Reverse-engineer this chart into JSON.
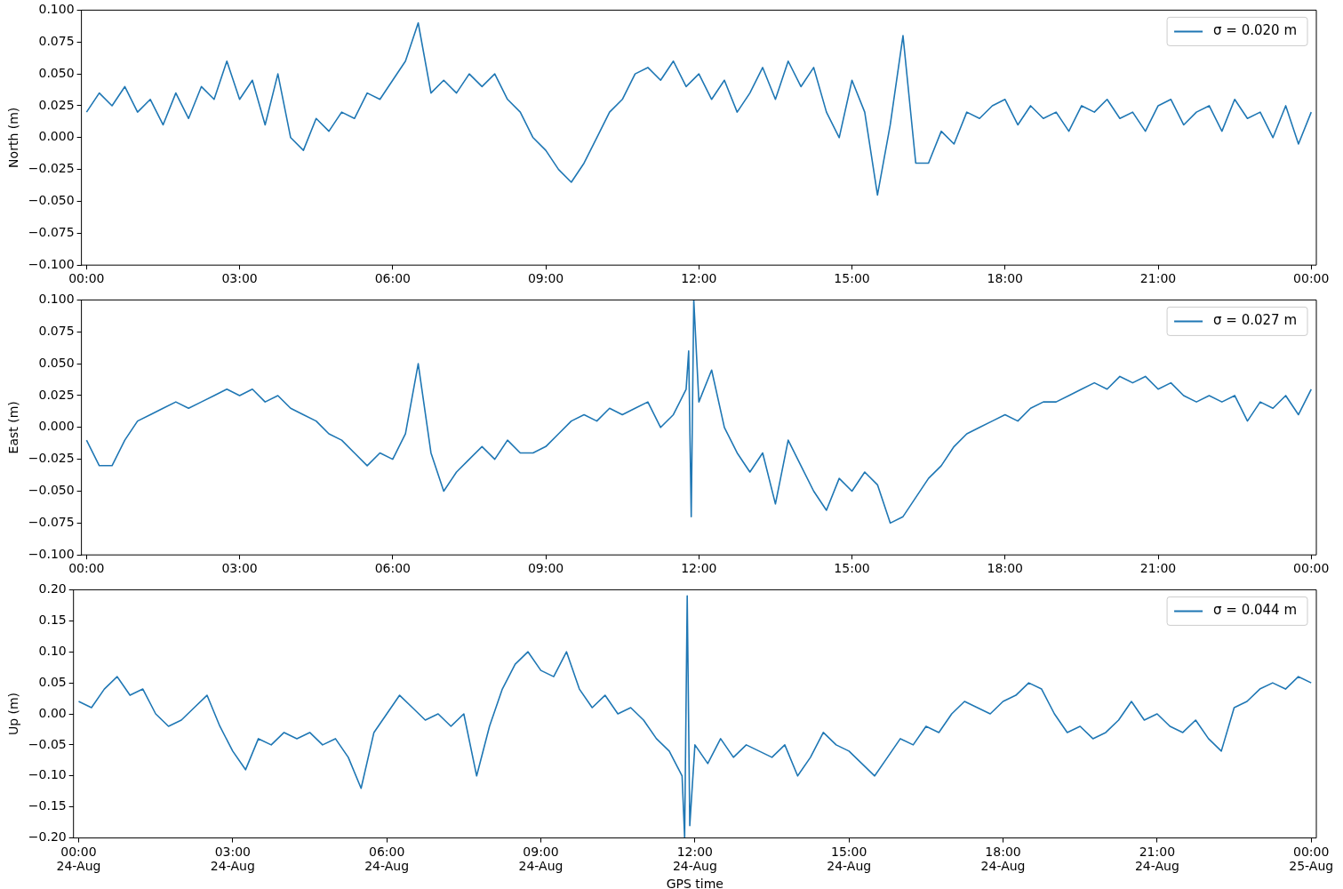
{
  "chart_data": [
    {
      "type": "line",
      "ylabel": "North (m)",
      "legend": "top right",
      "marker": "none",
      "line_style": "solid",
      "grid": false,
      "xlim": [
        -0.1,
        24.1
      ],
      "xticks": [
        {
          "value": 0,
          "label": "00:00"
        },
        {
          "value": 3,
          "label": "03:00"
        },
        {
          "value": 6,
          "label": "06:00"
        },
        {
          "value": 9,
          "label": "09:00"
        },
        {
          "value": 12,
          "label": "12:00"
        },
        {
          "value": 15,
          "label": "15:00"
        },
        {
          "value": 18,
          "label": "18:00"
        },
        {
          "value": 21,
          "label": "21:00"
        },
        {
          "value": 24,
          "label": "00:00"
        }
      ],
      "ylim": [
        -0.1,
        0.1
      ],
      "yticks": [
        {
          "value": -0.1,
          "label": "−0.100"
        },
        {
          "value": -0.075,
          "label": "−0.075"
        },
        {
          "value": -0.05,
          "label": "−0.050"
        },
        {
          "value": -0.025,
          "label": "−0.025"
        },
        {
          "value": 0,
          "label": "0.000"
        },
        {
          "value": 0.025,
          "label": "0.025"
        },
        {
          "value": 0.05,
          "label": "0.050"
        },
        {
          "value": 0.075,
          "label": "0.075"
        },
        {
          "value": 0.1,
          "label": "0.100"
        }
      ],
      "series": [
        {
          "name": "σ = 0.020 m",
          "color": "#1f77b4",
          "x": [
            0,
            0.25,
            0.5,
            0.75,
            1,
            1.25,
            1.5,
            1.75,
            2,
            2.25,
            2.5,
            2.75,
            3,
            3.25,
            3.5,
            3.75,
            4,
            4.25,
            4.5,
            4.75,
            5,
            5.25,
            5.5,
            5.75,
            6,
            6.25,
            6.5,
            6.75,
            7,
            7.25,
            7.5,
            7.75,
            8,
            8.25,
            8.5,
            8.75,
            9,
            9.25,
            9.5,
            9.75,
            10,
            10.25,
            10.5,
            10.75,
            11,
            11.25,
            11.5,
            11.75,
            12,
            12.25,
            12.5,
            12.75,
            13,
            13.25,
            13.5,
            13.75,
            14,
            14.25,
            14.5,
            14.75,
            15,
            15.25,
            15.5,
            15.75,
            16,
            16.25,
            16.5,
            16.75,
            17,
            17.25,
            17.5,
            17.75,
            18,
            18.25,
            18.5,
            18.75,
            19,
            19.25,
            19.5,
            19.75,
            20,
            20.25,
            20.5,
            20.75,
            21,
            21.25,
            21.5,
            21.75,
            22,
            22.25,
            22.5,
            22.75,
            23,
            23.25,
            23.5,
            23.75,
            24
          ],
          "values": [
            0.02,
            0.035,
            0.025,
            0.04,
            0.02,
            0.03,
            0.01,
            0.035,
            0.015,
            0.04,
            0.03,
            0.06,
            0.03,
            0.045,
            0.01,
            0.05,
            0.0,
            -0.01,
            0.015,
            0.005,
            0.02,
            0.015,
            0.035,
            0.03,
            0.045,
            0.06,
            0.09,
            0.035,
            0.045,
            0.035,
            0.05,
            0.04,
            0.05,
            0.03,
            0.02,
            0.0,
            -0.01,
            -0.025,
            -0.035,
            -0.02,
            0.0,
            0.02,
            0.03,
            0.05,
            0.055,
            0.045,
            0.06,
            0.04,
            0.05,
            0.03,
            0.045,
            0.02,
            0.035,
            0.055,
            0.03,
            0.06,
            0.04,
            0.055,
            0.02,
            0.0,
            0.045,
            0.02,
            -0.045,
            0.01,
            0.08,
            -0.02,
            -0.02,
            0.005,
            -0.005,
            0.02,
            0.015,
            0.025,
            0.03,
            0.01,
            0.025,
            0.015,
            0.02,
            0.005,
            0.025,
            0.02,
            0.03,
            0.015,
            0.02,
            0.005,
            0.025,
            0.03,
            0.01,
            0.02,
            0.025,
            0.005,
            0.03,
            0.015,
            0.02,
            0.0,
            0.025,
            -0.005,
            0.02
          ]
        }
      ]
    },
    {
      "type": "line",
      "ylabel": "East (m)",
      "legend": "top right",
      "marker": "none",
      "line_style": "solid",
      "grid": false,
      "xlim": [
        -0.1,
        24.1
      ],
      "xticks": [
        {
          "value": 0,
          "label": "00:00"
        },
        {
          "value": 3,
          "label": "03:00"
        },
        {
          "value": 6,
          "label": "06:00"
        },
        {
          "value": 9,
          "label": "09:00"
        },
        {
          "value": 12,
          "label": "12:00"
        },
        {
          "value": 15,
          "label": "15:00"
        },
        {
          "value": 18,
          "label": "18:00"
        },
        {
          "value": 21,
          "label": "21:00"
        },
        {
          "value": 24,
          "label": "00:00"
        }
      ],
      "ylim": [
        -0.1,
        0.1
      ],
      "yticks": [
        {
          "value": -0.1,
          "label": "−0.100"
        },
        {
          "value": -0.075,
          "label": "−0.075"
        },
        {
          "value": -0.05,
          "label": "−0.050"
        },
        {
          "value": -0.025,
          "label": "−0.025"
        },
        {
          "value": 0,
          "label": "0.000"
        },
        {
          "value": 0.025,
          "label": "0.025"
        },
        {
          "value": 0.05,
          "label": "0.050"
        },
        {
          "value": 0.075,
          "label": "0.075"
        },
        {
          "value": 0.1,
          "label": "0.100"
        }
      ],
      "series": [
        {
          "name": "σ = 0.027 m",
          "color": "#1f77b4",
          "x": [
            0,
            0.25,
            0.5,
            0.75,
            1,
            1.25,
            1.5,
            1.75,
            2,
            2.25,
            2.5,
            2.75,
            3,
            3.25,
            3.5,
            3.75,
            4,
            4.25,
            4.5,
            4.75,
            5,
            5.25,
            5.5,
            5.75,
            6,
            6.25,
            6.5,
            6.75,
            7,
            7.25,
            7.5,
            7.75,
            8,
            8.25,
            8.5,
            8.75,
            9,
            9.25,
            9.5,
            9.75,
            10,
            10.25,
            10.5,
            10.75,
            11,
            11.25,
            11.5,
            11.75,
            11.8,
            11.85,
            11.9,
            12,
            12.25,
            12.5,
            12.75,
            13,
            13.25,
            13.5,
            13.75,
            14,
            14.25,
            14.5,
            14.75,
            15,
            15.25,
            15.5,
            15.75,
            16,
            16.25,
            16.5,
            16.75,
            17,
            17.25,
            17.5,
            17.75,
            18,
            18.25,
            18.5,
            18.75,
            19,
            19.25,
            19.5,
            19.75,
            20,
            20.25,
            20.5,
            20.75,
            21,
            21.25,
            21.5,
            21.75,
            22,
            22.25,
            22.5,
            22.75,
            23,
            23.25,
            23.5,
            23.75,
            24
          ],
          "values": [
            -0.01,
            -0.03,
            -0.03,
            -0.01,
            0.005,
            0.01,
            0.015,
            0.02,
            0.015,
            0.02,
            0.025,
            0.03,
            0.025,
            0.03,
            0.02,
            0.025,
            0.015,
            0.01,
            0.005,
            -0.005,
            -0.01,
            -0.02,
            -0.03,
            -0.02,
            -0.025,
            -0.005,
            0.05,
            -0.02,
            -0.05,
            -0.035,
            -0.025,
            -0.015,
            -0.025,
            -0.01,
            -0.02,
            -0.02,
            -0.015,
            -0.005,
            0.005,
            0.01,
            0.005,
            0.015,
            0.01,
            0.015,
            0.02,
            0.0,
            0.01,
            0.03,
            0.06,
            -0.07,
            0.1,
            0.02,
            0.045,
            0.0,
            -0.02,
            -0.035,
            -0.02,
            -0.06,
            -0.01,
            -0.03,
            -0.05,
            -0.065,
            -0.04,
            -0.05,
            -0.035,
            -0.045,
            -0.075,
            -0.07,
            -0.055,
            -0.04,
            -0.03,
            -0.015,
            -0.005,
            0.0,
            0.005,
            0.01,
            0.005,
            0.015,
            0.02,
            0.02,
            0.025,
            0.03,
            0.035,
            0.03,
            0.04,
            0.035,
            0.04,
            0.03,
            0.035,
            0.025,
            0.02,
            0.025,
            0.02,
            0.025,
            0.005,
            0.02,
            0.015,
            0.025,
            0.01,
            0.03
          ]
        }
      ]
    },
    {
      "type": "line",
      "ylabel": "Up (m)",
      "xlabel": "GPS time",
      "legend": "top right",
      "marker": "none",
      "line_style": "solid",
      "grid": false,
      "xlim": [
        "--08-23T23:54",
        "--08-25T00:06"
      ],
      "xticks": [
        {
          "value": "--08-24T00:00",
          "label": "00:00\n24-Aug"
        },
        {
          "value": "--08-24T03:00",
          "label": "03:00\n24-Aug"
        },
        {
          "value": "--08-24T06:00",
          "label": "06:00\n24-Aug"
        },
        {
          "value": "--08-24T09:00",
          "label": "09:00\n24-Aug"
        },
        {
          "value": "--08-24T12:00",
          "label": "12:00\n24-Aug"
        },
        {
          "value": "--08-24T15:00",
          "label": "15:00\n24-Aug"
        },
        {
          "value": "--08-24T18:00",
          "label": "18:00\n24-Aug"
        },
        {
          "value": "--08-24T21:00",
          "label": "21:00\n24-Aug"
        },
        {
          "value": "--08-25T00:00",
          "label": "00:00\n25-Aug"
        }
      ],
      "ylim": [
        -0.2,
        0.2
      ],
      "yticks": [
        {
          "value": -0.2,
          "label": "−0.20"
        },
        {
          "value": -0.15,
          "label": "−0.15"
        },
        {
          "value": -0.1,
          "label": "−0.10"
        },
        {
          "value": -0.05,
          "label": "−0.05"
        },
        {
          "value": 0,
          "label": "0.00"
        },
        {
          "value": 0.05,
          "label": "0.05"
        },
        {
          "value": 0.1,
          "label": "0.10"
        },
        {
          "value": 0.15,
          "label": "0.15"
        },
        {
          "value": 0.2,
          "label": "0.20"
        }
      ],
      "series": [
        {
          "name": "σ = 0.044 m",
          "color": "#1f77b4",
          "x": [
            "--08-24T00:00",
            "--08-24T00:15",
            "--08-24T00:30",
            "--08-24T00:45",
            "--08-24T01:00",
            "--08-24T01:15",
            "--08-24T01:30",
            "--08-24T01:45",
            "--08-24T02:00",
            "--08-24T02:15",
            "--08-24T02:30",
            "--08-24T02:45",
            "--08-24T03:00",
            "--08-24T03:15",
            "--08-24T03:30",
            "--08-24T03:45",
            "--08-24T04:00",
            "--08-24T04:15",
            "--08-24T04:30",
            "--08-24T04:45",
            "--08-24T05:00",
            "--08-24T05:15",
            "--08-24T05:30",
            "--08-24T05:45",
            "--08-24T06:00",
            "--08-24T06:15",
            "--08-24T06:30",
            "--08-24T06:45",
            "--08-24T07:00",
            "--08-24T07:15",
            "--08-24T07:30",
            "--08-24T07:45",
            "--08-24T08:00",
            "--08-24T08:15",
            "--08-24T08:30",
            "--08-24T08:45",
            "--08-24T09:00",
            "--08-24T09:15",
            "--08-24T09:30",
            "--08-24T09:45",
            "--08-24T10:00",
            "--08-24T10:15",
            "--08-24T10:30",
            "--08-24T10:45",
            "--08-24T11:00",
            "--08-24T11:15",
            "--08-24T11:30",
            "--08-24T11:45",
            "--08-24T11:48",
            "--08-24T11:51",
            "--08-24T11:54",
            "--08-24T12:00",
            "--08-24T12:15",
            "--08-24T12:30",
            "--08-24T12:45",
            "--08-24T13:00",
            "--08-24T13:15",
            "--08-24T13:30",
            "--08-24T13:45",
            "--08-24T14:00",
            "--08-24T14:15",
            "--08-24T14:30",
            "--08-24T14:45",
            "--08-24T15:00",
            "--08-24T15:15",
            "--08-24T15:30",
            "--08-24T15:45",
            "--08-24T16:00",
            "--08-24T16:15",
            "--08-24T16:30",
            "--08-24T16:45",
            "--08-24T17:00",
            "--08-24T17:15",
            "--08-24T17:30",
            "--08-24T17:45",
            "--08-24T18:00",
            "--08-24T18:15",
            "--08-24T18:30",
            "--08-24T18:45",
            "--08-24T19:00",
            "--08-24T19:15",
            "--08-24T19:30",
            "--08-24T19:45",
            "--08-24T20:00",
            "--08-24T20:15",
            "--08-24T20:30",
            "--08-24T20:45",
            "--08-24T21:00",
            "--08-24T21:15",
            "--08-24T21:30",
            "--08-24T21:45",
            "--08-24T22:00",
            "--08-24T22:15",
            "--08-24T22:30",
            "--08-24T22:45",
            "--08-24T23:00",
            "--08-24T23:15",
            "--08-24T23:30",
            "--08-24T23:45",
            "--08-25T00:00"
          ],
          "values": [
            0.02,
            0.01,
            0.04,
            0.06,
            0.03,
            0.04,
            0.0,
            -0.02,
            -0.01,
            0.01,
            0.03,
            -0.02,
            -0.06,
            -0.09,
            -0.04,
            -0.05,
            -0.03,
            -0.04,
            -0.03,
            -0.05,
            -0.04,
            -0.07,
            -0.12,
            -0.03,
            0.0,
            0.03,
            0.01,
            -0.01,
            0.0,
            -0.02,
            0.0,
            -0.1,
            -0.02,
            0.04,
            0.08,
            0.1,
            0.07,
            0.06,
            0.1,
            0.04,
            0.01,
            0.03,
            0.0,
            0.01,
            -0.01,
            -0.04,
            -0.06,
            -0.1,
            -0.2,
            0.19,
            -0.18,
            -0.05,
            -0.08,
            -0.04,
            -0.07,
            -0.05,
            -0.06,
            -0.07,
            -0.05,
            -0.1,
            -0.07,
            -0.03,
            -0.05,
            -0.06,
            -0.08,
            -0.1,
            -0.07,
            -0.04,
            -0.05,
            -0.02,
            -0.03,
            0.0,
            0.02,
            0.01,
            0.0,
            0.02,
            0.03,
            0.05,
            0.04,
            0.0,
            -0.03,
            -0.02,
            -0.04,
            -0.03,
            -0.01,
            0.02,
            -0.01,
            0.0,
            -0.02,
            -0.03,
            -0.01,
            -0.04,
            -0.06,
            0.01,
            0.02,
            0.04,
            0.05,
            0.04,
            0.06,
            0.05
          ]
        }
      ]
    }
  ]
}
